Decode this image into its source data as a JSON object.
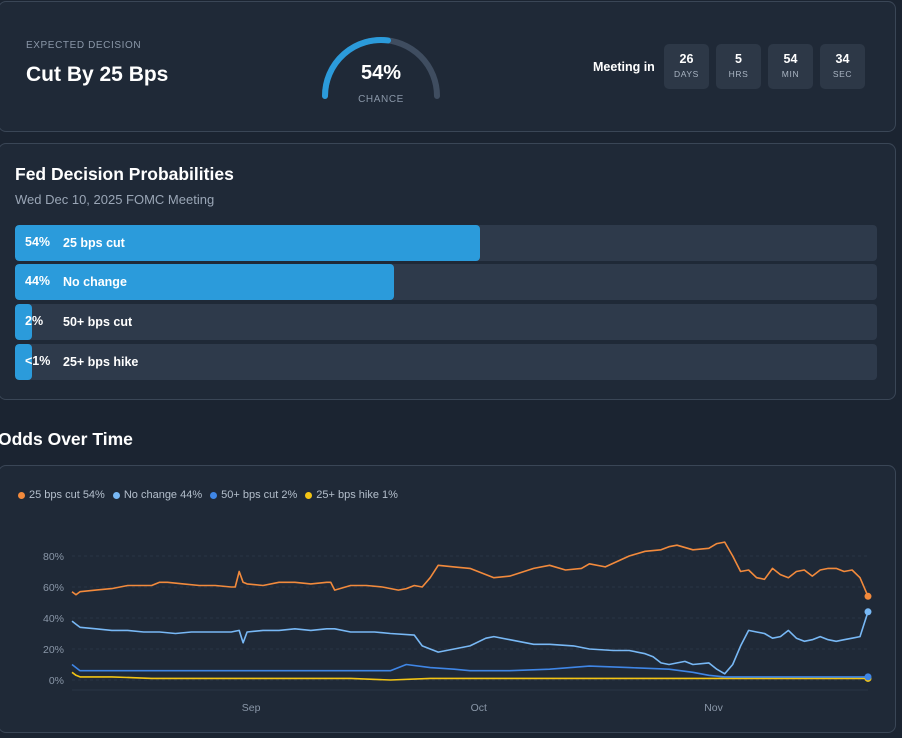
{
  "expected": {
    "label": "EXPECTED DECISION",
    "value": "Cut By 25 Bps"
  },
  "gauge": {
    "percent_text": "54%",
    "label": "CHANCE",
    "value": 0.54
  },
  "countdown": {
    "label": "Meeting in",
    "items": [
      {
        "value": "26",
        "unit": "DAYS"
      },
      {
        "value": "5",
        "unit": "HRS"
      },
      {
        "value": "54",
        "unit": "MIN"
      },
      {
        "value": "34",
        "unit": "SEC"
      }
    ]
  },
  "probabilities": {
    "title": "Fed Decision Probabilities",
    "subtitle": "Wed Dec 10, 2025 FOMC Meeting",
    "rows": [
      {
        "pct": "54%",
        "label": "25 bps cut",
        "value": 54
      },
      {
        "pct": "44%",
        "label": "No change",
        "value": 44
      },
      {
        "pct": "2%",
        "label": "50+ bps cut",
        "value": 2
      },
      {
        "pct": "<1%",
        "label": "25+ bps hike",
        "value": 1
      }
    ]
  },
  "odds": {
    "title": "Odds Over Time"
  },
  "colors": {
    "accent": "#2b9bdb",
    "orange": "#f28a3c",
    "lightblue": "#78b8f5",
    "blue": "#3f86e6",
    "yellow": "#f3c414"
  },
  "chart_data": {
    "type": "line",
    "legend": [
      {
        "text": "25 bps cut 54%",
        "color": "#f28a3c"
      },
      {
        "text": "No change 44%",
        "color": "#78b8f5"
      },
      {
        "text": "50+ bps cut 2%",
        "color": "#3f86e6"
      },
      {
        "text": "25+ bps hike 1%",
        "color": "#f3c414"
      }
    ],
    "yticks": [
      "0%",
      "20%",
      "40%",
      "60%",
      "80%"
    ],
    "ylim": [
      0,
      100
    ],
    "xticks": [
      {
        "label": "Sep",
        "x": 22.5
      },
      {
        "label": "Oct",
        "x": 51.1
      },
      {
        "label": "Nov",
        "x": 80.6
      }
    ],
    "xlim": [
      0,
      100
    ],
    "legend_position": "top-left",
    "grid": true,
    "series": [
      {
        "name": "25 bps cut",
        "color": "#f28a3c",
        "x": [
          0,
          0.5,
          1,
          3,
          5,
          7,
          9,
          10,
          11,
          12,
          14,
          16,
          18,
          20,
          20.5,
          21,
          21.5,
          22,
          24,
          26,
          28,
          30,
          32,
          32.5,
          33,
          35,
          37,
          39,
          41,
          42,
          43,
          44,
          45,
          46,
          48,
          50,
          53,
          55,
          58,
          60,
          62,
          64,
          65,
          67,
          70,
          72,
          74,
          75,
          76,
          78,
          80,
          81,
          82,
          83,
          84,
          85,
          86,
          87,
          88,
          89,
          90,
          91,
          92,
          93,
          94,
          95,
          96,
          97,
          98,
          99,
          100
        ],
        "y": [
          57,
          55,
          57,
          58,
          59,
          61,
          61,
          61,
          63,
          63,
          62,
          61,
          61,
          60,
          60,
          70,
          63,
          62,
          61,
          63,
          63,
          62,
          63,
          63,
          58,
          61,
          61,
          60,
          58,
          59,
          61,
          60,
          66,
          74,
          73,
          72,
          66,
          67,
          72,
          74,
          71,
          72,
          75,
          73,
          80,
          83,
          84,
          86,
          87,
          84,
          85,
          88,
          89,
          80,
          70,
          71,
          66,
          65,
          72,
          68,
          66,
          70,
          71,
          67,
          71,
          72,
          72,
          70,
          71,
          66,
          54
        ]
      },
      {
        "name": "No change",
        "color": "#78b8f5",
        "x": [
          0,
          0.5,
          1,
          3,
          5,
          7,
          9,
          11,
          13,
          15,
          17,
          20,
          21,
          21.5,
          22,
          24,
          26,
          28,
          30,
          32,
          33,
          35,
          38,
          40,
          43,
          44,
          46,
          48,
          50,
          52,
          53,
          55,
          58,
          60,
          63,
          65,
          68,
          70,
          72,
          73,
          74,
          75,
          77,
          78,
          80,
          81,
          82,
          83,
          84,
          85,
          86,
          87,
          88,
          89,
          90,
          91,
          92,
          93,
          94,
          95,
          96,
          97,
          98,
          99,
          100
        ],
        "y": [
          38,
          36,
          34,
          33,
          32,
          32,
          31,
          31,
          30,
          31,
          31,
          31,
          32,
          24,
          31,
          32,
          32,
          33,
          32,
          33,
          33,
          31,
          31,
          30,
          29,
          22,
          18,
          20,
          22,
          27,
          28,
          26,
          23,
          23,
          22,
          20,
          19,
          19,
          17,
          15,
          11,
          10,
          12,
          10,
          11,
          7,
          4,
          10,
          22,
          32,
          31,
          30,
          27,
          28,
          32,
          27,
          25,
          26,
          28,
          26,
          25,
          26,
          27,
          28,
          44
        ]
      },
      {
        "name": "50+ bps cut",
        "color": "#3f86e6",
        "x": [
          0,
          0.5,
          1,
          3,
          5,
          10,
          15,
          20,
          25,
          30,
          35,
          40,
          42,
          45,
          48,
          50,
          55,
          60,
          65,
          70,
          75,
          78,
          80,
          82,
          85,
          90,
          95,
          100
        ],
        "y": [
          10,
          8,
          6,
          6,
          6,
          6,
          6,
          6,
          6,
          6,
          6,
          6,
          10,
          8,
          7,
          6,
          6,
          7,
          9,
          8,
          7,
          5,
          3,
          2,
          2,
          2,
          2,
          2
        ]
      },
      {
        "name": "25+ bps hike",
        "color": "#f3c414",
        "x": [
          0,
          0.5,
          1,
          3,
          5,
          10,
          15,
          20,
          25,
          30,
          35,
          40,
          45,
          50,
          55,
          60,
          65,
          70,
          75,
          80,
          85,
          90,
          95,
          100
        ],
        "y": [
          5,
          3,
          2,
          2,
          2,
          1,
          1,
          1,
          1,
          1,
          1,
          0,
          1,
          1,
          1,
          1,
          1,
          1,
          1,
          1,
          1,
          1,
          1,
          1
        ]
      }
    ]
  }
}
